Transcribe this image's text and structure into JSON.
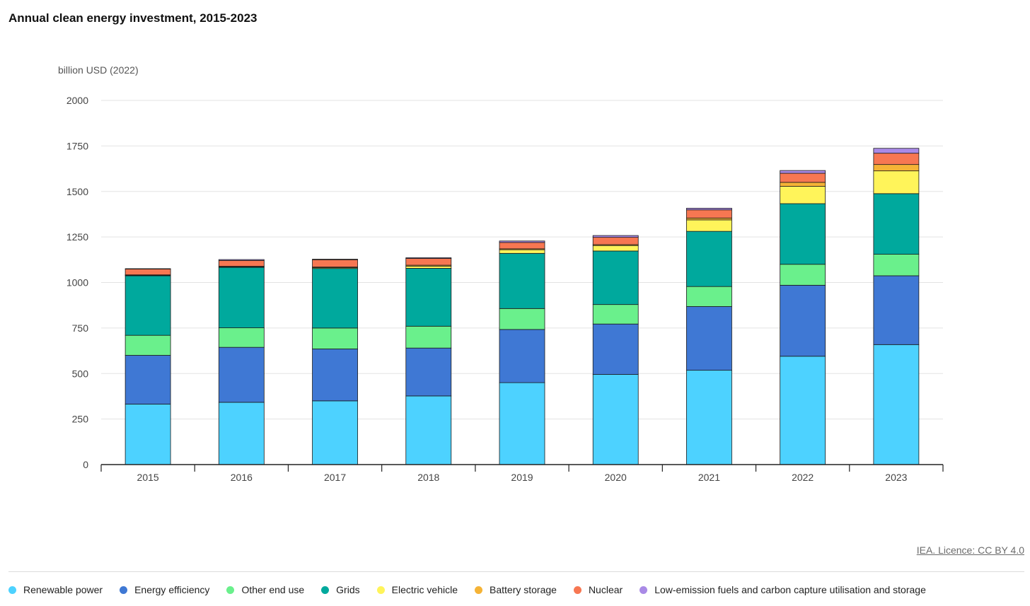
{
  "header": {
    "title": "Annual clean energy investment, 2015-2023",
    "unit_label": "billion USD (2022)"
  },
  "footer": {
    "licence": "IEA. Licence: CC BY 4.0"
  },
  "legend": [
    {
      "label": "Renewable power",
      "color": "#4dd2ff"
    },
    {
      "label": "Energy efficiency",
      "color": "#3f78d4"
    },
    {
      "label": "Other end use",
      "color": "#6af08c"
    },
    {
      "label": "Grids",
      "color": "#00a99d"
    },
    {
      "label": "Electric vehicle",
      "color": "#fff45a"
    },
    {
      "label": "Battery storage",
      "color": "#f5b336"
    },
    {
      "label": "Nuclear",
      "color": "#f77752"
    },
    {
      "label": "Low-emission fuels and carbon capture utilisation and storage",
      "color": "#a98ae6"
    }
  ],
  "chart_data": {
    "type": "bar",
    "stacked": true,
    "title": "Annual clean energy investment, 2015-2023",
    "ylabel": "billion USD (2022)",
    "ylim": [
      0,
      2000
    ],
    "yticks": [
      0,
      250,
      500,
      750,
      1000,
      1250,
      1500,
      1750,
      2000
    ],
    "grid": true,
    "legend_position": "bottom",
    "categories": [
      "2015",
      "2016",
      "2017",
      "2018",
      "2019",
      "2020",
      "2021",
      "2022",
      "2023"
    ],
    "series": [
      {
        "name": "Renewable power",
        "color": "#4dd2ff",
        "values": [
          332,
          342,
          350,
          377,
          450,
          495,
          518,
          595,
          659
        ]
      },
      {
        "name": "Energy efficiency",
        "color": "#3f78d4",
        "values": [
          268,
          302,
          285,
          263,
          292,
          277,
          350,
          390,
          378
        ]
      },
      {
        "name": "Other end use",
        "color": "#6af08c",
        "values": [
          110,
          107,
          115,
          120,
          115,
          107,
          110,
          115,
          118
        ]
      },
      {
        "name": "Grids",
        "color": "#00a99d",
        "values": [
          327,
          332,
          327,
          318,
          303,
          294,
          303,
          333,
          333
        ]
      },
      {
        "name": "Electric vehicle",
        "color": "#fff45a",
        "values": [
          3,
          3,
          5,
          12,
          20,
          30,
          63,
          95,
          125
        ]
      },
      {
        "name": "Battery storage",
        "color": "#f5b336",
        "values": [
          2,
          3,
          3,
          5,
          5,
          5,
          10,
          22,
          35
        ]
      },
      {
        "name": "Nuclear",
        "color": "#f77752",
        "values": [
          32,
          32,
          40,
          37,
          35,
          40,
          45,
          50,
          62
        ]
      },
      {
        "name": "Low-emission fuels and carbon capture utilisation and storage",
        "color": "#a98ae6",
        "values": [
          2,
          5,
          3,
          4,
          8,
          10,
          9,
          15,
          27
        ]
      }
    ]
  }
}
